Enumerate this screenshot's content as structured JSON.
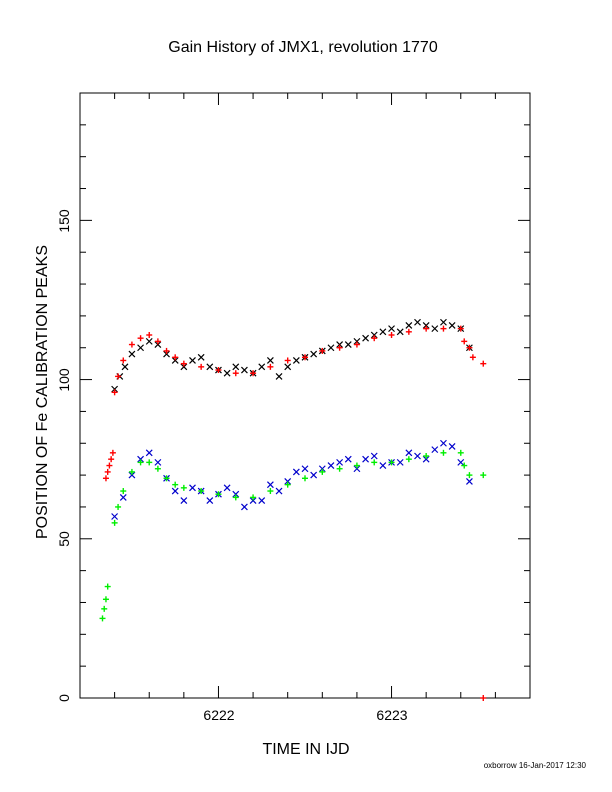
{
  "chart_data": {
    "type": "scatter",
    "title": "Gain History of JMX1, revolution 1770",
    "xlabel": "TIME IN IJD",
    "ylabel": "POSITION OF Fe CALIBRATION PEAKS",
    "xlim": [
      6221.2,
      6223.8
    ],
    "ylim": [
      0,
      190
    ],
    "x_ticks": [
      "6222",
      "6223"
    ],
    "y_ticks": [
      "0",
      "50",
      "100",
      "150"
    ],
    "grid": false,
    "credit": "oxborrow 16-Jan-2017 12:30",
    "series": [
      {
        "color": "#000000",
        "marker": "x",
        "points": [
          [
            6221.4,
            97
          ],
          [
            6221.43,
            101
          ],
          [
            6221.46,
            104
          ],
          [
            6221.5,
            108
          ],
          [
            6221.55,
            110
          ],
          [
            6221.6,
            112
          ],
          [
            6221.65,
            111
          ],
          [
            6221.7,
            108
          ],
          [
            6221.75,
            106
          ],
          [
            6221.8,
            104
          ],
          [
            6221.85,
            106
          ],
          [
            6221.9,
            107
          ],
          [
            6221.95,
            104
          ],
          [
            6222.0,
            103
          ],
          [
            6222.05,
            102
          ],
          [
            6222.1,
            104
          ],
          [
            6222.15,
            103
          ],
          [
            6222.2,
            102
          ],
          [
            6222.25,
            104
          ],
          [
            6222.3,
            106
          ],
          [
            6222.35,
            101
          ],
          [
            6222.4,
            104
          ],
          [
            6222.45,
            106
          ],
          [
            6222.5,
            107
          ],
          [
            6222.55,
            108
          ],
          [
            6222.6,
            109
          ],
          [
            6222.65,
            110
          ],
          [
            6222.7,
            111
          ],
          [
            6222.75,
            111
          ],
          [
            6222.8,
            112
          ],
          [
            6222.85,
            113
          ],
          [
            6222.9,
            114
          ],
          [
            6222.95,
            115
          ],
          [
            6223.0,
            116
          ],
          [
            6223.05,
            115
          ],
          [
            6223.1,
            117
          ],
          [
            6223.15,
            118
          ],
          [
            6223.2,
            117
          ],
          [
            6223.25,
            116
          ],
          [
            6223.3,
            118
          ],
          [
            6223.35,
            117
          ],
          [
            6223.4,
            116
          ],
          [
            6223.45,
            110
          ]
        ]
      },
      {
        "color": "#ff0000",
        "marker": "+",
        "points": [
          [
            6221.35,
            69
          ],
          [
            6221.36,
            71
          ],
          [
            6221.37,
            73
          ],
          [
            6221.38,
            75
          ],
          [
            6221.39,
            77
          ],
          [
            6221.4,
            96
          ],
          [
            6221.42,
            101
          ],
          [
            6221.45,
            106
          ],
          [
            6221.5,
            111
          ],
          [
            6221.55,
            113
          ],
          [
            6221.6,
            114
          ],
          [
            6221.65,
            112
          ],
          [
            6221.7,
            109
          ],
          [
            6221.75,
            107
          ],
          [
            6221.8,
            105
          ],
          [
            6221.9,
            104
          ],
          [
            6222.0,
            103
          ],
          [
            6222.1,
            102
          ],
          [
            6222.2,
            102
          ],
          [
            6222.3,
            104
          ],
          [
            6222.4,
            106
          ],
          [
            6222.5,
            107
          ],
          [
            6222.6,
            109
          ],
          [
            6222.7,
            110
          ],
          [
            6222.8,
            111
          ],
          [
            6222.9,
            113
          ],
          [
            6223.0,
            114
          ],
          [
            6223.1,
            115
          ],
          [
            6223.2,
            116
          ],
          [
            6223.3,
            116
          ],
          [
            6223.4,
            116
          ],
          [
            6223.42,
            112
          ],
          [
            6223.45,
            110
          ],
          [
            6223.47,
            107
          ],
          [
            6223.53,
            105
          ],
          [
            6223.53,
            0
          ]
        ]
      },
      {
        "color": "#0000cc",
        "marker": "x",
        "points": [
          [
            6221.4,
            57
          ],
          [
            6221.45,
            63
          ],
          [
            6221.5,
            70
          ],
          [
            6221.55,
            75
          ],
          [
            6221.6,
            77
          ],
          [
            6221.65,
            74
          ],
          [
            6221.7,
            69
          ],
          [
            6221.75,
            65
          ],
          [
            6221.8,
            62
          ],
          [
            6221.85,
            66
          ],
          [
            6221.9,
            65
          ],
          [
            6221.95,
            62
          ],
          [
            6222.0,
            64
          ],
          [
            6222.05,
            66
          ],
          [
            6222.1,
            64
          ],
          [
            6222.15,
            60
          ],
          [
            6222.2,
            62
          ],
          [
            6222.25,
            62
          ],
          [
            6222.3,
            67
          ],
          [
            6222.35,
            65
          ],
          [
            6222.4,
            68
          ],
          [
            6222.45,
            71
          ],
          [
            6222.5,
            72
          ],
          [
            6222.55,
            70
          ],
          [
            6222.6,
            72
          ],
          [
            6222.65,
            73
          ],
          [
            6222.7,
            74
          ],
          [
            6222.75,
            75
          ],
          [
            6222.8,
            72
          ],
          [
            6222.85,
            75
          ],
          [
            6222.9,
            76
          ],
          [
            6222.95,
            73
          ],
          [
            6223.0,
            74
          ],
          [
            6223.05,
            74
          ],
          [
            6223.1,
            77
          ],
          [
            6223.15,
            76
          ],
          [
            6223.2,
            75
          ],
          [
            6223.25,
            78
          ],
          [
            6223.3,
            80
          ],
          [
            6223.35,
            79
          ],
          [
            6223.4,
            74
          ],
          [
            6223.45,
            68
          ]
        ]
      },
      {
        "color": "#00ee00",
        "marker": "+",
        "points": [
          [
            6221.33,
            25
          ],
          [
            6221.34,
            28
          ],
          [
            6221.35,
            31
          ],
          [
            6221.36,
            35
          ],
          [
            6221.4,
            55
          ],
          [
            6221.42,
            60
          ],
          [
            6221.45,
            65
          ],
          [
            6221.5,
            71
          ],
          [
            6221.55,
            74
          ],
          [
            6221.6,
            74
          ],
          [
            6221.65,
            72
          ],
          [
            6221.7,
            69
          ],
          [
            6221.75,
            67
          ],
          [
            6221.8,
            66
          ],
          [
            6221.9,
            65
          ],
          [
            6222.0,
            64
          ],
          [
            6222.1,
            63
          ],
          [
            6222.2,
            63
          ],
          [
            6222.3,
            65
          ],
          [
            6222.4,
            67
          ],
          [
            6222.5,
            69
          ],
          [
            6222.6,
            71
          ],
          [
            6222.7,
            72
          ],
          [
            6222.8,
            73
          ],
          [
            6222.9,
            74
          ],
          [
            6223.0,
            74
          ],
          [
            6223.1,
            75
          ],
          [
            6223.2,
            76
          ],
          [
            6223.3,
            77
          ],
          [
            6223.4,
            77
          ],
          [
            6223.42,
            73
          ],
          [
            6223.45,
            70
          ],
          [
            6223.53,
            70
          ]
        ]
      }
    ]
  }
}
